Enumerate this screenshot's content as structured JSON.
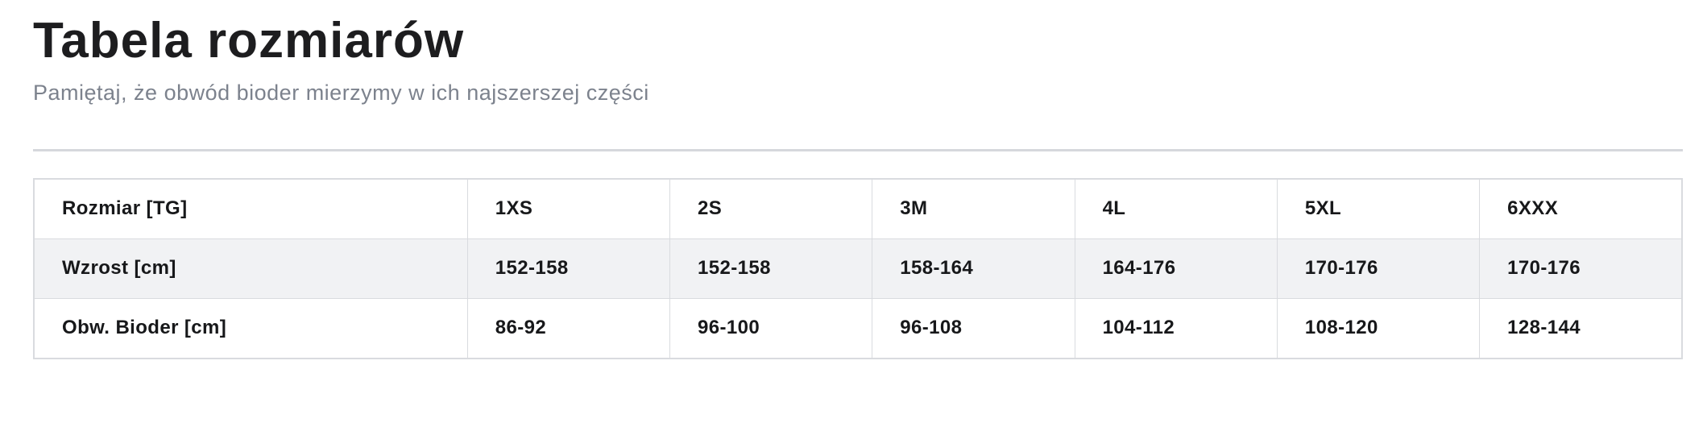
{
  "page": {
    "title": "Tabela rozmiarów",
    "subtitle": "Pamiętaj, że obwód bioder mierzymy w ich najszerszej części"
  },
  "colors": {
    "title_text": "#1d1d1f",
    "subtitle_text": "#7c828d",
    "table_border": "#d9dbdf",
    "zebra_row_background": "#f1f2f4",
    "divider": "#d6d8dc"
  },
  "table": {
    "header": {
      "label": "Rozmiar [TG]",
      "values": [
        "1XS",
        "2S",
        "3M",
        "4L",
        "5XL",
        "6XXX"
      ]
    },
    "rows": [
      {
        "label": "Wzrost [cm]",
        "values": [
          "152-158",
          "152-158",
          "158-164",
          "164-176",
          "170-176",
          "170-176"
        ]
      },
      {
        "label": "Obw. Bioder [cm]",
        "values": [
          "86-92",
          "96-100",
          "96-108",
          "104-112",
          "108-120",
          "128-144"
        ]
      }
    ]
  }
}
